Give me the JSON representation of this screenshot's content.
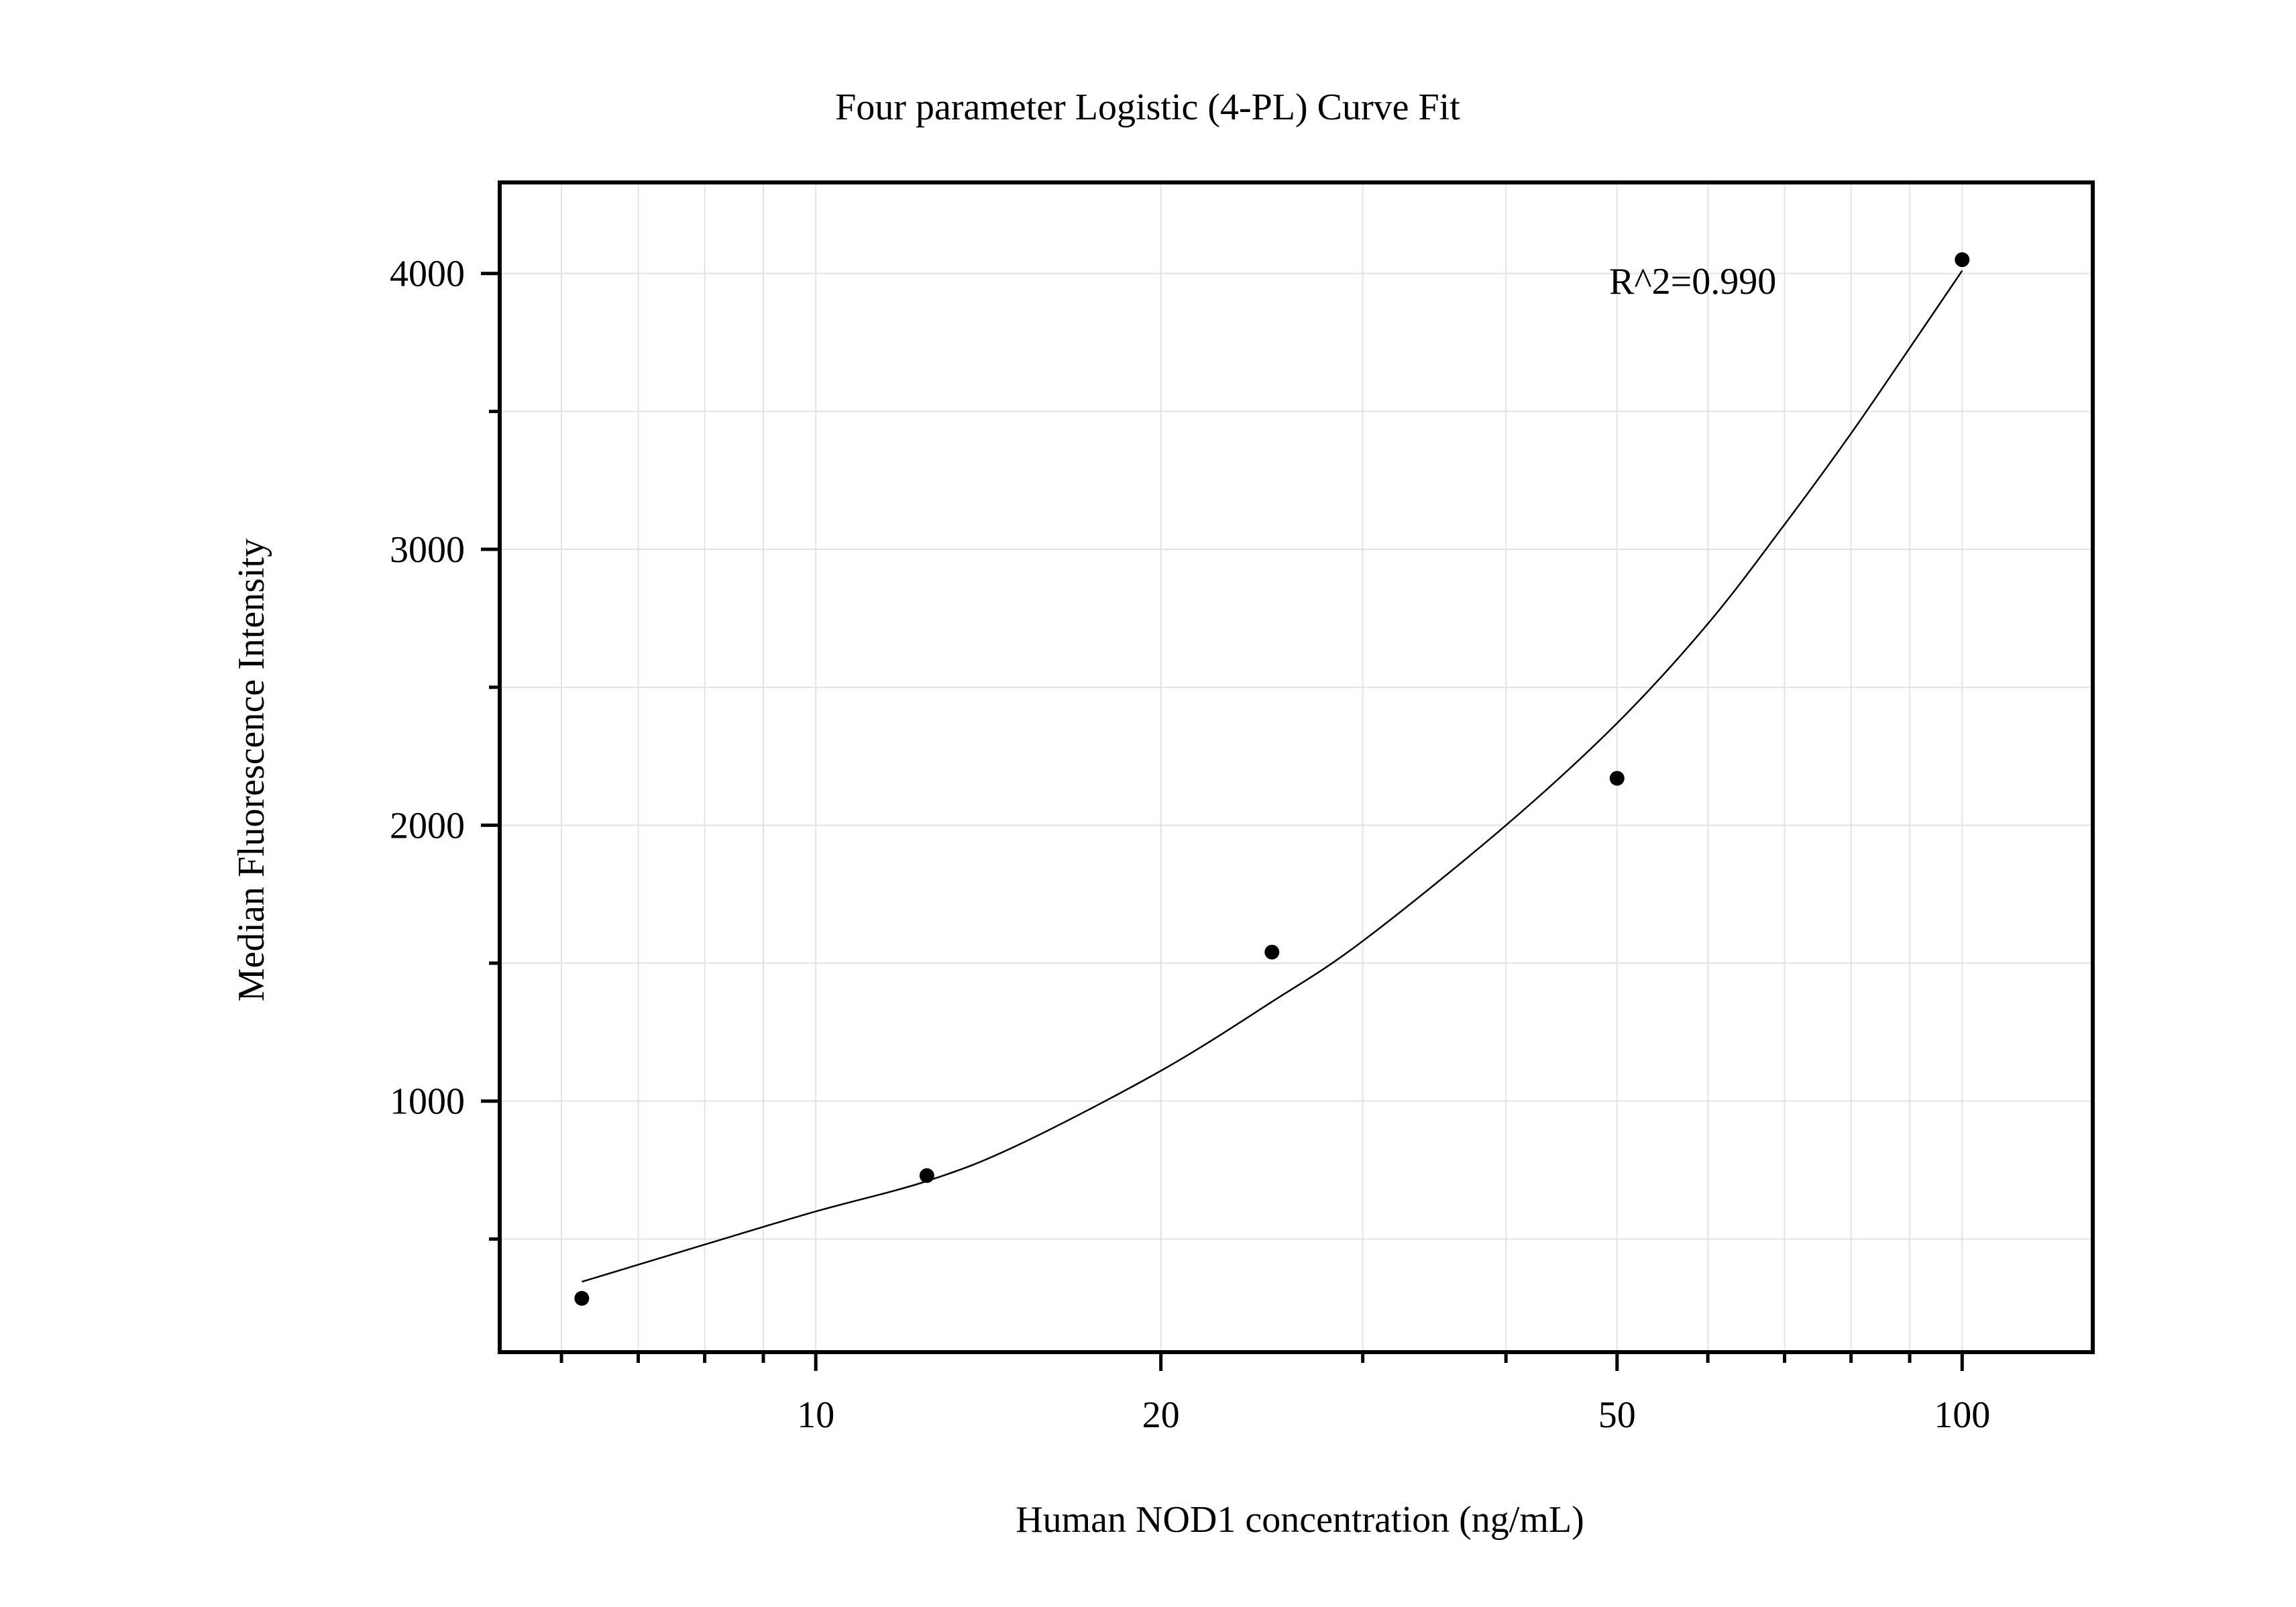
{
  "chart_data": {
    "type": "scatter",
    "title": "Four parameter Logistic (4-PL) Curve Fit",
    "xlabel": "Human NOD1 concentration (ng/mL)",
    "ylabel": "Median Fluorescence Intensity",
    "x_scale": "log",
    "xlim": [
      5.3,
      130
    ],
    "ylim": [
      90,
      4330
    ],
    "x_ticks": [
      10,
      20,
      50,
      100
    ],
    "x_tick_labels": [
      "10",
      "20",
      "50",
      "100"
    ],
    "x_minor_ticks": [
      6,
      7,
      8,
      9,
      30,
      40,
      60,
      70,
      80,
      90
    ],
    "y_ticks": [
      1000,
      2000,
      3000,
      4000
    ],
    "y_tick_labels": [
      "1000",
      "2000",
      "3000",
      "4000"
    ],
    "y_minor_ticks": [
      500,
      1500,
      2500,
      3500
    ],
    "grid": true,
    "annotation": "R^2=0.990",
    "series": [
      {
        "kind": "points",
        "x": [
          6.25,
          12.5,
          25,
          50,
          100
        ],
        "y": [
          285,
          730,
          1540,
          2170,
          4050
        ]
      },
      {
        "kind": "fit",
        "x": [
          6.25,
          8,
          10,
          12.5,
          15,
          20,
          25,
          30,
          40,
          50,
          60,
          70,
          80,
          90,
          100
        ],
        "y": [
          345,
          480,
          600,
          710,
          840,
          1110,
          1360,
          1580,
          2000,
          2370,
          2730,
          3090,
          3420,
          3730,
          4010
        ]
      }
    ]
  }
}
